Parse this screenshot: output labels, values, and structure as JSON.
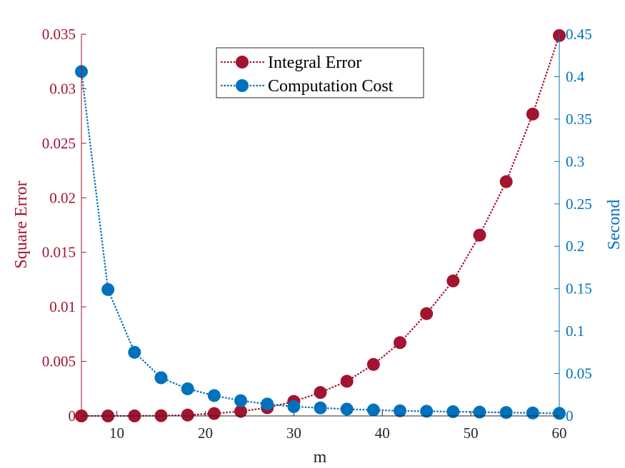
{
  "chart_data": {
    "type": "line",
    "xlabel": "m",
    "y_left_label": "Square Error",
    "y_right_label": "Second",
    "xlim": [
      6,
      60
    ],
    "x_ticks": [
      10,
      20,
      30,
      40,
      50,
      60
    ],
    "y_left_lim": [
      0,
      0.035
    ],
    "y_left_ticks": [
      0,
      0.005,
      0.01,
      0.015,
      0.02,
      0.025,
      0.03,
      0.035
    ],
    "y_right_lim": [
      0,
      0.45
    ],
    "y_right_ticks": [
      0,
      0.05,
      0.1,
      0.15,
      0.2,
      0.25,
      0.3,
      0.35,
      0.4,
      0.45
    ],
    "legend_location": "top-center",
    "grid": false,
    "x": [
      6,
      9,
      12,
      15,
      18,
      21,
      24,
      27,
      30,
      33,
      36,
      39,
      42,
      45,
      48,
      51,
      54,
      57,
      60
    ],
    "series": [
      {
        "name": "Integral Error",
        "axis": "left",
        "color": "#a2142f",
        "line_style": "dotted",
        "marker": "circle",
        "values": [
          0,
          0,
          0,
          2e-05,
          8e-05,
          0.00022,
          0.00042,
          0.00075,
          0.00133,
          0.00215,
          0.00318,
          0.00472,
          0.00672,
          0.00938,
          0.01238,
          0.01658,
          0.02148,
          0.02768,
          0.03488
        ]
      },
      {
        "name": "Computation Cost",
        "axis": "right",
        "color": "#0072bd",
        "line_style": "dotted",
        "marker": "circle",
        "values": [
          0.406,
          0.149,
          0.075,
          0.045,
          0.032,
          0.024,
          0.018,
          0.014,
          0.011,
          0.0095,
          0.008,
          0.007,
          0.006,
          0.0055,
          0.005,
          0.0045,
          0.004,
          0.0035,
          0.003
        ]
      }
    ]
  }
}
